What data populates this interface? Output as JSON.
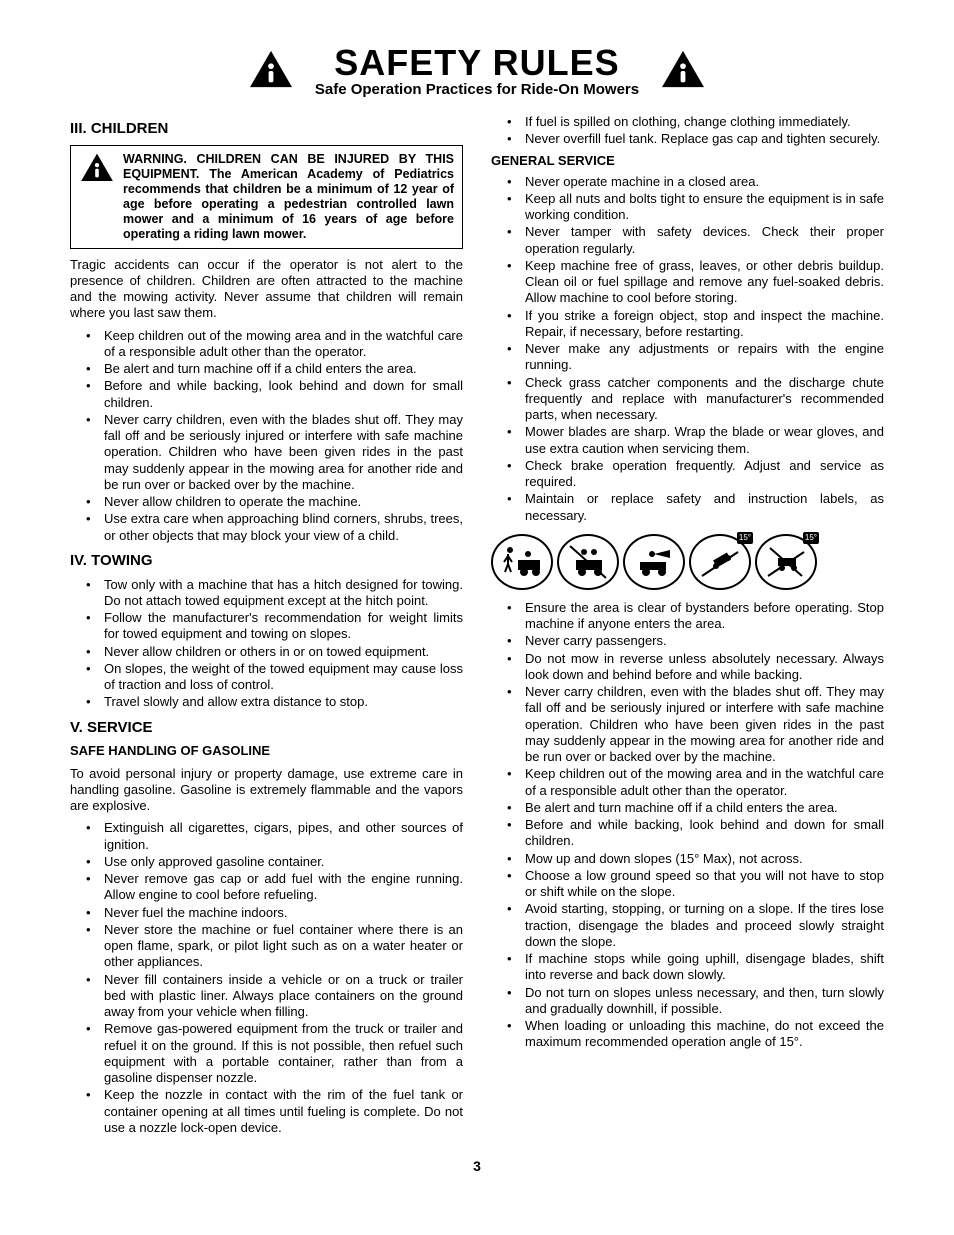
{
  "header": {
    "title": "SAFETY RULES",
    "subtitle": "Safe Operation Practices for Ride-On Mowers"
  },
  "sec3": {
    "heading": "III. CHILDREN",
    "warning": "WARNING. CHILDREN CAN BE INJURED BY THIS EQUIPMENT.  The American Academy of Pediatrics recommends that children be a minimum of 12 year of age before operating a pedestrian controlled lawn mower and a minimum of 16 years of age before operating a riding lawn mower.",
    "intro": "Tragic accidents can occur if the operator is not alert to the presence of children.  Children are often attracted to the machine and the mowing activity.  Never assume that children will remain where you last saw them.",
    "items": [
      "Keep children out of the mowing area and in the watchful care of a responsible adult other than the operator.",
      "Be alert and turn machine off if a child enters the area.",
      "Before and while backing, look behind and down for small children.",
      "Never carry children, even with the blades shut off.  They may fall off and be seriously injured or interfere with safe machine operation. Children who have been given rides in the past may suddenly appear in the mowing area for another ride and be run over or backed over by the machine.",
      "Never allow children to operate the machine.",
      "Use extra care when approaching blind corners, shrubs, trees, or other objects that may block your view of a child."
    ]
  },
  "sec4": {
    "heading": "IV. TOWING",
    "items": [
      "Tow only with a machine that has a hitch designed for towing. Do not attach towed equipment except at the hitch point.",
      "Follow the manufacturer's recommendation for weight limits for towed equipment and towing on slopes.",
      "Never allow children or others in or on towed equipment.",
      "On slopes, the weight of the towed equipment may cause loss of traction and loss of control.",
      "Travel slowly and allow extra distance to stop."
    ]
  },
  "sec5": {
    "heading": "V. SERVICE",
    "gas_h": "SAFE HANDLING OF GASOLINE",
    "gas_intro": "To avoid personal injury or property damage, use extreme care in handling gasoline. Gasoline is extremely flammable and the vapors are explosive.",
    "gas_items": [
      "Extinguish all cigarettes, cigars, pipes, and other sources of ignition.",
      "Use only approved gasoline container.",
      "Never remove gas cap or add fuel with the engine running. Allow engine to cool before refueling.",
      "Never fuel the machine indoors.",
      "Never store the machine or fuel container where there is an open flame, spark, or pilot light such as on a water heater or other appliances.",
      "Never fill containers inside a vehicle or on a truck or trailer bed with plastic liner. Always place containers on the ground away from your vehicle when filling.",
      "Remove gas-powered equipment from the truck or trailer and refuel it on the ground. If this is not possible, then refuel such equipment with a portable container, rather than from a gasoline dispenser nozzle.",
      "Keep the nozzle in contact with the rim of the fuel tank or container opening at all times until fueling is complete. Do not use a nozzle lock-open device."
    ],
    "gas_items2": [
      "If fuel is spilled on clothing, change clothing immediately.",
      "Never overfill fuel tank. Replace gas cap and tighten securely."
    ],
    "gen_h": "GENERAL SERVICE",
    "gen_items": [
      "Never operate machine in a closed area.",
      "Keep all nuts and bolts tight to ensure the equipment is in safe working condition.",
      "Never tamper with safety devices. Check their proper operation regularly.",
      "Keep machine free of grass, leaves, or other debris buildup.  Clean oil or fuel spillage and remove any fuel-soaked debris.  Allow machine to cool before storing.",
      "If you strike a foreign object, stop and inspect the machine. Repair, if necessary, before restarting.",
      "Never make any adjustments or repairs with the engine running.",
      "Check grass catcher components and the discharge chute frequently and replace with manufacturer's recommended parts, when necessary.",
      "Mower blades are sharp.  Wrap the blade or wear gloves, and use extra caution when servicing them.",
      "Check brake operation frequently.  Adjust and service as required.",
      "Maintain or replace safety and instruction labels, as necessary."
    ],
    "final_items": [
      "Ensure the area is clear of bystanders before operating. Stop machine if anyone enters the area.",
      "Never carry passengers.",
      "Do not mow in reverse unless absolutely necessary. Always look down and behind before and while backing.",
      "Never carry children, even with the blades shut off.  They may fall off and be seriously injured or interfere with safe machine operation. Children who have been given rides in the past may suddenly appear in the mowing area for another ride and be run over or backed over by the machine.",
      "Keep children out of the mowing area and in the watchful care of a responsible adult other than the operator.",
      "Be alert and turn machine off if a child enters the area.",
      "Before and while backing, look behind and down for small children.",
      "Mow up and down slopes (15° Max), not across.",
      "Choose a low ground speed so that you will not have to stop or shift while on the slope.",
      "Avoid starting, stopping, or turning on a slope.  If the tires lose traction,  disengage the blades and proceed slowly straight down the slope.",
      "If machine stops while going uphill, disengage blades, shift into reverse and back down slowly.",
      "Do not turn on slopes unless necessary, and then, turn slowly and gradually downhill, if possible.",
      "When loading or unloading this machine, do not exceed the maximum recommended operation angle of 15°."
    ]
  },
  "icons": {
    "badge15": "15°"
  },
  "page": "3"
}
